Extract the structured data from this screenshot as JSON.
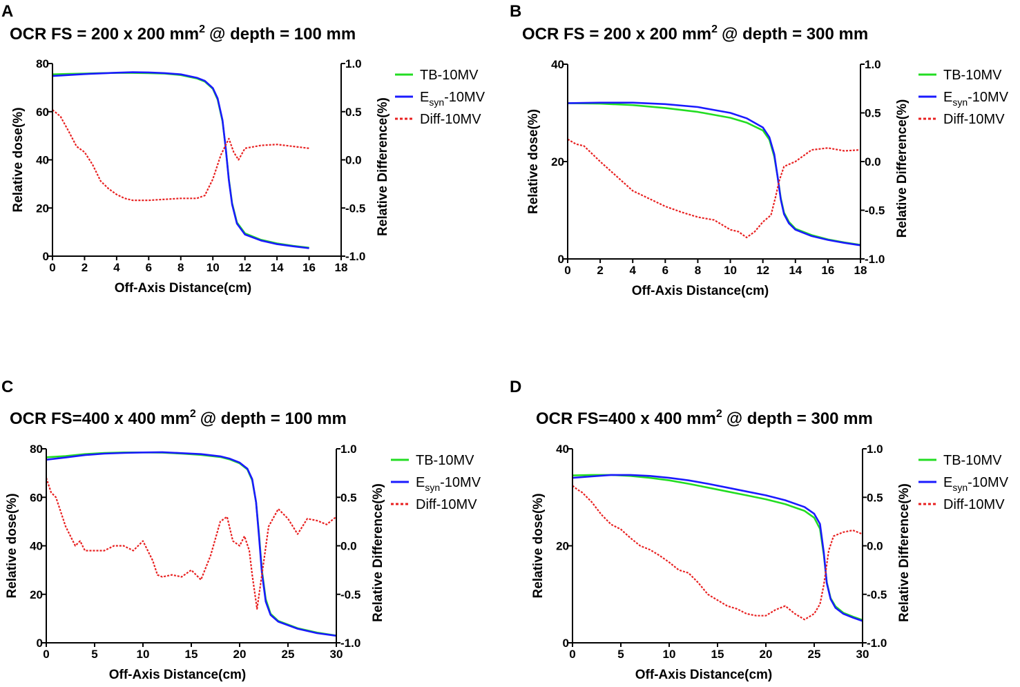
{
  "chart_data": [
    {
      "panel": "A",
      "type": "line",
      "title": "OCR FS = 200 x 200 mm",
      "title_sup": "2",
      "title_suffix": "@ depth = 100 mm",
      "xlabel": "Off-Axis Distance(cm)",
      "ylabel": "Relative dose(%)",
      "y2label": "Relative Difference(%)",
      "xlim": [
        0,
        18
      ],
      "xticks": [
        "0",
        "2",
        "4",
        "6",
        "8",
        "10",
        "12",
        "14",
        "16",
        "18"
      ],
      "ylim": [
        0,
        80
      ],
      "yticks": [
        "0",
        "20",
        "40",
        "60",
        "80"
      ],
      "y2lim": [
        -1.0,
        1.0
      ],
      "y2ticks": [
        "-1.0",
        "-0.5",
        "0.0",
        "0.5",
        "1.0"
      ],
      "legend": [
        "TB-10MV",
        "-10MV",
        "Diff-10MV"
      ],
      "legend_sub": [
        "",
        "syn",
        ""
      ],
      "legend_prefix": [
        "",
        "E",
        ""
      ],
      "series": [
        {
          "name": "TB-10MV",
          "color": "#22dd22",
          "axis": "left",
          "x": [
            0,
            1,
            2,
            3,
            4,
            5,
            6,
            7,
            8,
            9,
            9.5,
            10,
            10.3,
            10.6,
            10.8,
            11.0,
            11.2,
            11.5,
            12,
            13,
            14,
            15,
            16
          ],
          "y": [
            75.5,
            75.7,
            75.8,
            76.0,
            76.1,
            76.1,
            76.0,
            75.8,
            75.2,
            73.8,
            72.5,
            69.5,
            65,
            56,
            45,
            32,
            22,
            14,
            9.5,
            6.8,
            5.3,
            4.3,
            3.5
          ]
        },
        {
          "name": "Esyn-10MV",
          "color": "#1a1aff",
          "axis": "left",
          "x": [
            0,
            1,
            2,
            3,
            4,
            5,
            6,
            7,
            8,
            9,
            9.5,
            10,
            10.3,
            10.6,
            10.8,
            11.0,
            11.2,
            11.5,
            12,
            13,
            14,
            15,
            16
          ],
          "y": [
            74.8,
            75.2,
            75.6,
            75.9,
            76.2,
            76.4,
            76.3,
            76.0,
            75.5,
            74.1,
            72.8,
            69.8,
            65.5,
            56.5,
            45,
            31.5,
            21.5,
            13.5,
            9.0,
            6.5,
            5.0,
            4.1,
            3.3
          ]
        },
        {
          "name": "Diff-10MV",
          "color": "#e82020",
          "axis": "right",
          "dashed": true,
          "x": [
            0,
            0.5,
            1,
            1.5,
            2,
            2.5,
            3,
            3.5,
            4,
            4.5,
            5,
            6,
            7,
            8,
            9,
            9.5,
            10,
            10.5,
            11,
            11.3,
            11.6,
            12,
            13,
            14,
            15,
            16
          ],
          "y": [
            0.52,
            0.45,
            0.3,
            0.14,
            0.08,
            -0.05,
            -0.22,
            -0.3,
            -0.36,
            -0.4,
            -0.42,
            -0.42,
            -0.41,
            -0.4,
            -0.4,
            -0.37,
            -0.2,
            0.05,
            0.22,
            0.08,
            0.0,
            0.12,
            0.15,
            0.16,
            0.14,
            0.12
          ]
        }
      ]
    },
    {
      "panel": "B",
      "type": "line",
      "title": "OCR FS = 200 x 200 mm",
      "title_sup": "2",
      "title_suffix": "@ depth = 300 mm",
      "xlabel": "Off-Axis Distance(cm)",
      "ylabel": "Relative dose(%)",
      "y2label": "Relative Difference(%)",
      "xlim": [
        0,
        18
      ],
      "xticks": [
        "0",
        "2",
        "4",
        "6",
        "8",
        "10",
        "12",
        "14",
        "16",
        "18"
      ],
      "ylim": [
        0,
        40
      ],
      "yticks": [
        "0",
        "20",
        "40"
      ],
      "y2lim": [
        -1.0,
        1.0
      ],
      "y2ticks": [
        "-1.0",
        "-0.5",
        "0.0",
        "0.5",
        "1.0"
      ],
      "legend": [
        "TB-10MV",
        "-10MV",
        "Diff-10MV"
      ],
      "legend_sub": [
        "",
        "syn",
        ""
      ],
      "legend_prefix": [
        "",
        "E",
        ""
      ],
      "series": [
        {
          "name": "TB-10MV",
          "color": "#22dd22",
          "axis": "left",
          "x": [
            0,
            2,
            4,
            6,
            8,
            10,
            11,
            12,
            12.4,
            12.7,
            12.9,
            13.1,
            13.3,
            13.6,
            14,
            15,
            16,
            17,
            18
          ],
          "y": [
            32.0,
            31.9,
            31.6,
            31.0,
            30.2,
            29.0,
            28.0,
            26.4,
            24.5,
            21.0,
            17.0,
            12.5,
            9.5,
            7.6,
            6.2,
            4.9,
            4.0,
            3.4,
            2.9
          ]
        },
        {
          "name": "Esyn-10MV",
          "color": "#1a1aff",
          "axis": "left",
          "x": [
            0,
            2,
            4,
            6,
            8,
            10,
            11,
            12,
            12.4,
            12.7,
            12.9,
            13.1,
            13.3,
            13.6,
            14,
            15,
            16,
            17,
            18
          ],
          "y": [
            32.0,
            32.1,
            32.1,
            31.8,
            31.2,
            30.0,
            28.9,
            27.0,
            25.0,
            21.5,
            17.0,
            12.2,
            9.2,
            7.3,
            6.0,
            4.7,
            3.9,
            3.3,
            2.8
          ]
        },
        {
          "name": "Diff-10MV",
          "color": "#e82020",
          "axis": "right",
          "dashed": true,
          "x": [
            0,
            0.5,
            1,
            2,
            3,
            4,
            5,
            6,
            7,
            8,
            9,
            10,
            10.5,
            11,
            11.5,
            12,
            12.5,
            12.8,
            13,
            13.3,
            14,
            15,
            16,
            17,
            18
          ],
          "y": [
            0.23,
            0.18,
            0.16,
            0.0,
            -0.15,
            -0.3,
            -0.38,
            -0.46,
            -0.52,
            -0.57,
            -0.6,
            -0.7,
            -0.72,
            -0.78,
            -0.72,
            -0.62,
            -0.55,
            -0.35,
            -0.2,
            -0.05,
            0.0,
            0.12,
            0.14,
            0.11,
            0.12
          ]
        }
      ]
    },
    {
      "panel": "C",
      "type": "line",
      "title": "OCR FS=400 x 400 mm",
      "title_sup": "2",
      "title_suffix": "@ depth = 100 mm",
      "xlabel": "Off-Axis Distance(cm)",
      "ylabel": "Relative dose(%)",
      "y2label": "Relative Difference(%)",
      "xlim": [
        0,
        30
      ],
      "xticks": [
        "0",
        "5",
        "10",
        "15",
        "20",
        "25",
        "30"
      ],
      "ylim": [
        0,
        80
      ],
      "yticks": [
        "0",
        "20",
        "40",
        "60",
        "80"
      ],
      "y2lim": [
        -1.0,
        1.0
      ],
      "y2ticks": [
        "-1.0",
        "-0.5",
        "0.0",
        "0.5",
        "1.0"
      ],
      "legend": [
        "TB-10MV",
        "-10MV",
        "Diff-10MV"
      ],
      "legend_sub": [
        "",
        "syn",
        ""
      ],
      "legend_prefix": [
        "",
        "E",
        ""
      ],
      "series": [
        {
          "name": "TB-10MV",
          "color": "#22dd22",
          "axis": "left",
          "x": [
            0,
            2,
            4,
            6,
            8,
            10,
            12,
            14,
            16,
            18,
            19,
            20,
            20.8,
            21.3,
            21.7,
            22.0,
            22.3,
            22.7,
            23.2,
            24,
            26,
            28,
            30
          ],
          "y": [
            76.5,
            77.0,
            77.8,
            78.3,
            78.5,
            78.5,
            78.4,
            78.0,
            77.5,
            76.6,
            75.6,
            74.0,
            71.5,
            67,
            58,
            45,
            30,
            18,
            12,
            9.0,
            6.0,
            4.2,
            3.0
          ]
        },
        {
          "name": "Esyn-10MV",
          "color": "#1a1aff",
          "axis": "left",
          "x": [
            0,
            2,
            4,
            6,
            8,
            10,
            12,
            14,
            16,
            18,
            19,
            20,
            20.8,
            21.3,
            21.7,
            22.0,
            22.3,
            22.7,
            23.2,
            24,
            26,
            28,
            30
          ],
          "y": [
            75.5,
            76.4,
            77.4,
            78.0,
            78.3,
            78.5,
            78.6,
            78.2,
            77.8,
            76.9,
            75.9,
            74.3,
            71.8,
            67.5,
            58,
            44,
            29,
            17,
            11.5,
            8.7,
            5.8,
            4.0,
            2.9
          ]
        },
        {
          "name": "Diff-10MV",
          "color": "#e82020",
          "axis": "right",
          "dashed": true,
          "x": [
            0,
            0.5,
            1,
            1.5,
            2,
            3,
            3.5,
            4,
            5,
            6,
            7,
            8,
            9,
            10,
            11,
            11.5,
            12,
            13,
            14,
            15,
            16,
            17,
            18,
            18.7,
            19.3,
            20,
            20.5,
            21,
            21.3,
            21.8,
            22.3,
            23,
            24,
            25,
            26,
            27,
            28,
            29,
            30
          ],
          "y": [
            0.7,
            0.55,
            0.5,
            0.35,
            0.2,
            0.0,
            0.05,
            -0.05,
            -0.05,
            -0.05,
            0.0,
            0.0,
            -0.05,
            0.05,
            -0.15,
            -0.3,
            -0.32,
            -0.3,
            -0.32,
            -0.25,
            -0.35,
            -0.1,
            0.25,
            0.3,
            0.05,
            0.0,
            0.1,
            -0.05,
            -0.3,
            -0.65,
            -0.3,
            0.2,
            0.38,
            0.28,
            0.12,
            0.28,
            0.26,
            0.22,
            0.3
          ]
        }
      ]
    },
    {
      "panel": "D",
      "type": "line",
      "title": "OCR FS=400 x 400 mm",
      "title_sup": "2",
      "title_suffix": "@ depth = 300 mm",
      "xlabel": "Off-Axis Distance(cm)",
      "ylabel": "Relative dose(%)",
      "y2label": "Relative Difference(%)",
      "xlim": [
        0,
        30
      ],
      "xticks": [
        "0",
        "5",
        "10",
        "15",
        "20",
        "25",
        "30"
      ],
      "ylim": [
        0,
        40
      ],
      "yticks": [
        "0",
        "20",
        "40"
      ],
      "y2lim": [
        -1.0,
        1.0
      ],
      "y2ticks": [
        "-1.0",
        "-0.5",
        "0.0",
        "0.5",
        "1.0"
      ],
      "legend": [
        "TB-10MV",
        "-10MV",
        "Diff-10MV"
      ],
      "legend_sub": [
        "",
        "syn",
        ""
      ],
      "legend_prefix": [
        "",
        "E",
        ""
      ],
      "series": [
        {
          "name": "TB-10MV",
          "color": "#22dd22",
          "axis": "left",
          "x": [
            0,
            2,
            4,
            6,
            8,
            10,
            12,
            14,
            16,
            18,
            20,
            22,
            24,
            25,
            25.6,
            26.0,
            26.3,
            26.7,
            27.2,
            28,
            29,
            30
          ],
          "y": [
            34.5,
            34.6,
            34.6,
            34.4,
            34.0,
            33.5,
            32.8,
            32.0,
            31.2,
            30.4,
            29.6,
            28.6,
            27.2,
            25.8,
            23.5,
            18.0,
            12.5,
            9.2,
            7.5,
            6.2,
            5.4,
            4.7
          ]
        },
        {
          "name": "Esyn-10MV",
          "color": "#1a1aff",
          "axis": "left",
          "x": [
            0,
            2,
            4,
            6,
            8,
            10,
            12,
            14,
            16,
            18,
            20,
            22,
            24,
            25,
            25.6,
            26.0,
            26.3,
            26.7,
            27.2,
            28,
            29,
            30
          ],
          "y": [
            34.0,
            34.3,
            34.6,
            34.6,
            34.4,
            34.0,
            33.5,
            32.8,
            32.0,
            31.2,
            30.4,
            29.4,
            28.0,
            26.6,
            24.5,
            18.5,
            12.3,
            9.0,
            7.2,
            6.0,
            5.2,
            4.5
          ]
        },
        {
          "name": "Diff-10MV",
          "color": "#e82020",
          "axis": "right",
          "dashed": true,
          "x": [
            0,
            0.5,
            1,
            2,
            3,
            4,
            5,
            6,
            7,
            8,
            9,
            10,
            11,
            12,
            13,
            14,
            15,
            16,
            17,
            18,
            19,
            20,
            21,
            22,
            23,
            24,
            25,
            25.6,
            26,
            26.5,
            27,
            28,
            29,
            30
          ],
          "y": [
            0.62,
            0.58,
            0.55,
            0.45,
            0.32,
            0.22,
            0.17,
            0.08,
            0.0,
            -0.04,
            -0.1,
            -0.17,
            -0.25,
            -0.28,
            -0.38,
            -0.5,
            -0.56,
            -0.62,
            -0.65,
            -0.7,
            -0.72,
            -0.72,
            -0.66,
            -0.62,
            -0.7,
            -0.76,
            -0.7,
            -0.6,
            -0.4,
            -0.05,
            0.1,
            0.14,
            0.16,
            0.12
          ]
        }
      ]
    }
  ]
}
